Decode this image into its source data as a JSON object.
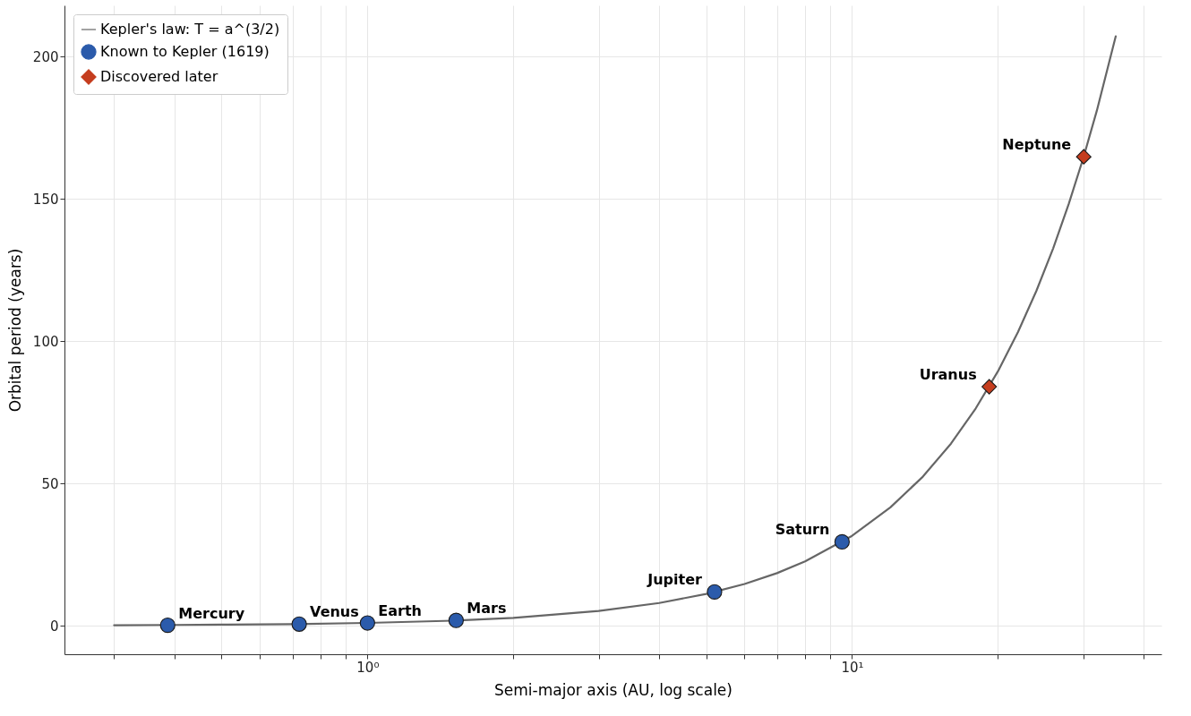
{
  "chart_data": {
    "type": "scatter",
    "xlabel": "Semi-major axis (AU, log scale)",
    "ylabel": "Orbital period (years)",
    "log": "x",
    "xlim": [
      0.237,
      43.5
    ],
    "ylim": [
      -10,
      218
    ],
    "xticks": [
      {
        "value": 0.3,
        "label": null
      },
      {
        "value": 0.4,
        "label": null
      },
      {
        "value": 0.5,
        "label": null
      },
      {
        "value": 0.6,
        "label": null
      },
      {
        "value": 0.7,
        "label": null
      },
      {
        "value": 0.8,
        "label": null
      },
      {
        "value": 0.9,
        "label": null
      },
      {
        "value": 1,
        "label": "10⁰"
      },
      {
        "value": 2,
        "label": null
      },
      {
        "value": 3,
        "label": null
      },
      {
        "value": 4,
        "label": null
      },
      {
        "value": 5,
        "label": null
      },
      {
        "value": 6,
        "label": null
      },
      {
        "value": 7,
        "label": null
      },
      {
        "value": 8,
        "label": null
      },
      {
        "value": 9,
        "label": null
      },
      {
        "value": 10,
        "label": "10¹"
      },
      {
        "value": 20,
        "label": null
      },
      {
        "value": 30,
        "label": null
      },
      {
        "value": 40,
        "label": null
      }
    ],
    "yticks": [
      0,
      50,
      100,
      150,
      200
    ],
    "grid": true,
    "legend": "top left",
    "series": [
      {
        "name": "Kepler's law: T = a^(3/2)",
        "type": "line",
        "color": "#666666",
        "line_style": "solid",
        "marker": "none",
        "x": [
          0.3,
          0.4,
          0.5,
          0.7,
          1,
          1.5,
          2,
          3,
          4,
          5,
          6,
          7,
          8,
          10,
          12,
          14,
          16,
          18,
          20,
          22,
          24,
          26,
          28,
          30,
          32,
          35
        ],
        "values": [
          0.2,
          0.3,
          0.4,
          0.6,
          1,
          1.8,
          2.8,
          5.2,
          8,
          11.2,
          14.7,
          18.5,
          22.6,
          31.6,
          41.6,
          52.4,
          64,
          76.4,
          89.4,
          103.2,
          117.6,
          132.6,
          148.2,
          164.3,
          181,
          207.1
        ]
      },
      {
        "name": "Known to Kepler (1619)",
        "type": "scatter",
        "color": "#2b5bab",
        "marker": "circle",
        "x": [
          0.387,
          0.723,
          1,
          1.524,
          5.203,
          9.537
        ],
        "values": [
          0.2,
          0.6,
          1,
          1.9,
          11.9,
          29.5
        ]
      },
      {
        "name": "Discovered later",
        "type": "scatter",
        "color": "#c53d1e",
        "marker": "diamond",
        "x": [
          19.19,
          30.07
        ],
        "values": [
          84.0,
          164.8
        ]
      }
    ],
    "annotations": [
      {
        "text": "Mercury",
        "x": 0.387,
        "y": 0.2
      },
      {
        "text": "Venus",
        "x": 0.723,
        "y": 0.6
      },
      {
        "text": "Earth",
        "x": 1,
        "y": 1
      },
      {
        "text": "Mars",
        "x": 1.524,
        "y": 1.9
      },
      {
        "text": "Jupiter",
        "x": 5.203,
        "y": 11.9
      },
      {
        "text": "Saturn",
        "x": 9.537,
        "y": 29.5
      },
      {
        "text": "Uranus",
        "x": 19.19,
        "y": 84.0
      },
      {
        "text": "Neptune",
        "x": 30.07,
        "y": 164.8
      }
    ]
  }
}
